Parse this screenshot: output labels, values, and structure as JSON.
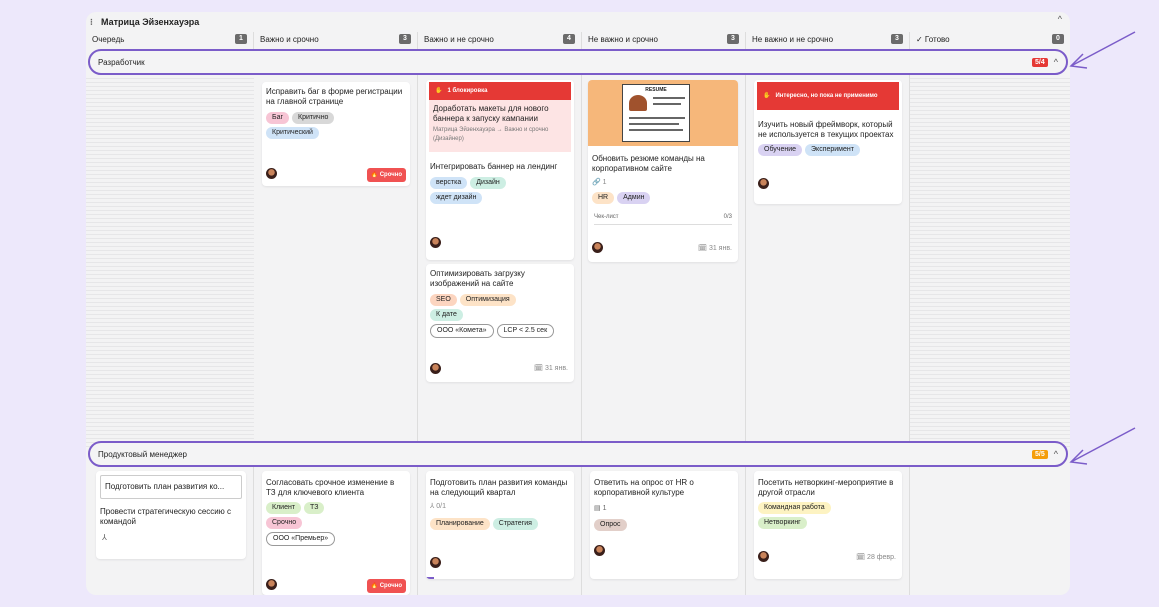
{
  "board": {
    "title": "Матрица Эйзенхауэра"
  },
  "columns": [
    {
      "label": "Очередь",
      "count": "1"
    },
    {
      "label": "Важно и срочно",
      "count": "3"
    },
    {
      "label": "Важно и не срочно",
      "count": "4"
    },
    {
      "label": "Не важно и срочно",
      "count": "3"
    },
    {
      "label": "Не важно и не срочно",
      "count": "3"
    },
    {
      "label": "✓ Готово",
      "count": "0"
    }
  ],
  "lanes": [
    {
      "label": "Разработчик",
      "badge": "5/4",
      "badge_color": "#e53935"
    },
    {
      "label": "Продуктовый менеджер",
      "badge": "5/5",
      "badge_color": "#f59e0b"
    }
  ],
  "cards": {
    "c1": {
      "title": "Исправить баг в форме регистрации на главной странице",
      "tags": [
        "Баг",
        "Критично",
        "Критический"
      ],
      "urgent": "Срочно"
    },
    "c2": {
      "block": "1 блокировка",
      "block_title": "Доработать макеты для нового баннера к запуску кампании",
      "block_path": "Матрица Эйзенхауэра → Важно и срочно (Дизайнер)",
      "title": "Интегрировать баннер на лендинг",
      "tags": [
        "верстка",
        "Дизайн",
        "ждет дизайн"
      ]
    },
    "c3": {
      "title": "Оптимизировать загрузку изображений на сайте",
      "tags": [
        "SEO",
        "Оптимизация",
        "К дате"
      ],
      "chips": [
        "ООО «Комета»",
        "LCP < 2.5 сек"
      ],
      "date": "31 янв."
    },
    "c4": {
      "cover_text": "RESUME",
      "title": "Обновить резюме команды на корпоративном сайте",
      "links": "1",
      "tags": [
        "HR",
        "Админ"
      ],
      "checklist": "Чек-лист",
      "checklist_val": "0/3",
      "date": "31 янв."
    },
    "c5": {
      "block": "Интересно, но пока не применимо",
      "title": "Изучить новый фреймворк, который не используется в текущих проектах",
      "tags": [
        "Обучение",
        "Эксперимент"
      ]
    },
    "c6": {
      "input_value": "Подготовить план развития ко...",
      "title": "Провести стратегическую сессию с командой"
    },
    "c7": {
      "title": "Согласовать срочное изменение в ТЗ для ключевого клиента",
      "tags": [
        "Клиент",
        "ТЗ",
        "Срочно"
      ],
      "chips": [
        "ООО «Премьер»"
      ],
      "urgent": "Срочно"
    },
    "c8": {
      "title": "Подготовить план развития команды на следующий квартал",
      "subtasks": "0/1",
      "tags": [
        "Планирование",
        "Стратегия"
      ]
    },
    "c9": {
      "title": "Ответить на опрос от HR о корпоративной культуре",
      "comments": "1",
      "tags": [
        "Опрос"
      ]
    },
    "c10": {
      "title": "Посетить нетворкинг-мероприятие в другой отрасли",
      "tags": [
        "Командная работа",
        "Нетворкинг"
      ],
      "date": "28 февр."
    }
  },
  "colors": {
    "accent": "#7b5cc9",
    "urgent": "#f05252",
    "block": "#e53935"
  }
}
